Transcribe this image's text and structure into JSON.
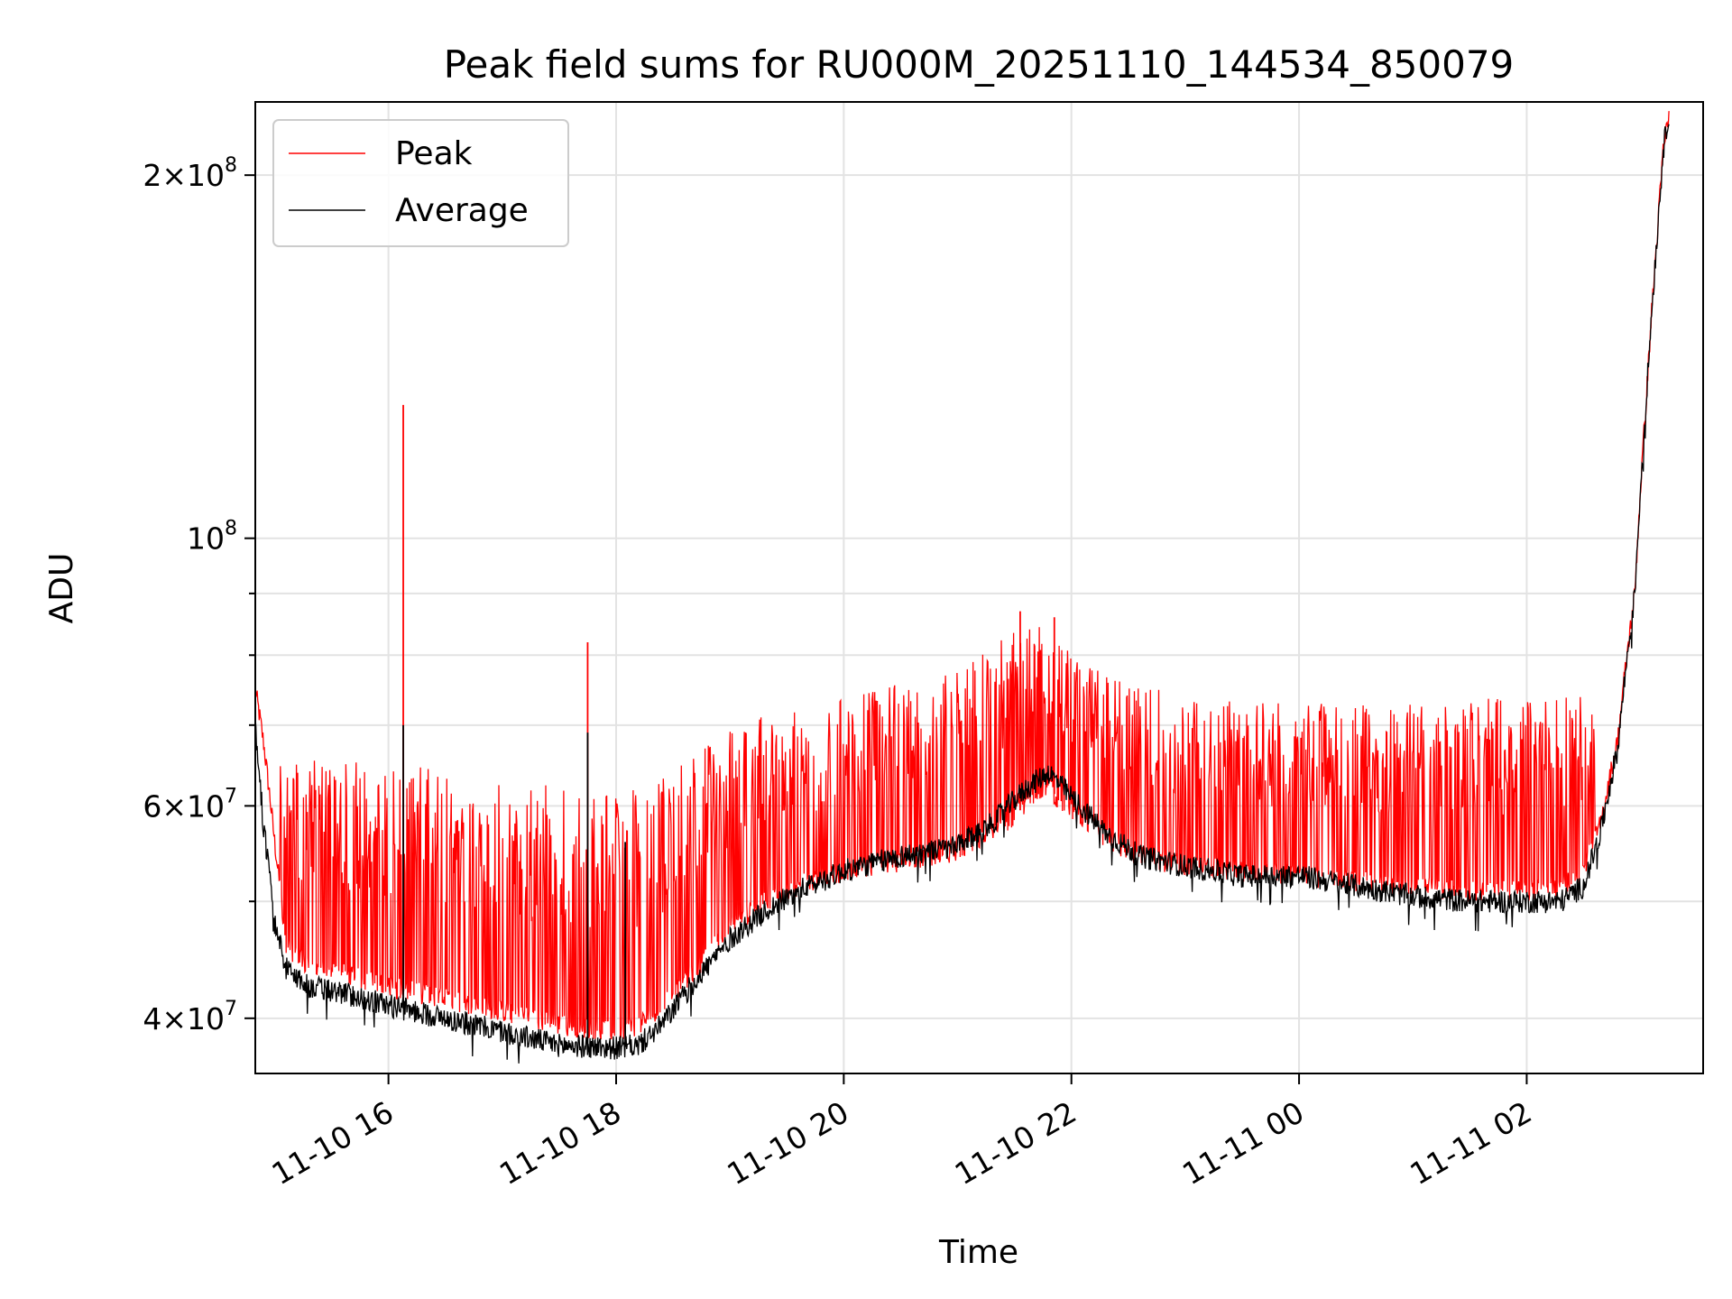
{
  "chart_data": {
    "type": "line",
    "title": "Peak field sums for RU000M_20251110_144534_850079",
    "xlabel": "Time",
    "ylabel": "ADU",
    "yscale": "log",
    "ylim": [
      36000000,
      230000000
    ],
    "xlim_hours": [
      14.83,
      27.55
    ],
    "grid": true,
    "legend_position": "upper-left",
    "x_ticks": [
      {
        "hour": 16,
        "label": "11-10 16"
      },
      {
        "hour": 18,
        "label": "11-10 18"
      },
      {
        "hour": 20,
        "label": "11-10 20"
      },
      {
        "hour": 22,
        "label": "11-10 22"
      },
      {
        "hour": 24,
        "label": "11-11 00"
      },
      {
        "hour": 26,
        "label": "11-11 02"
      }
    ],
    "y_ticks": [
      {
        "value": 40000000,
        "mantissa": "4",
        "exp": "7"
      },
      {
        "value": 60000000,
        "mantissa": "6",
        "exp": "7"
      },
      {
        "value": 100000000,
        "mantissa": "",
        "exp": "8"
      },
      {
        "value": 200000000,
        "mantissa": "2",
        "exp": "8"
      }
    ],
    "y_minor_ticks": [
      50000000,
      70000000,
      80000000,
      90000000
    ],
    "series": [
      {
        "name": "Peak",
        "color": "#ff0000",
        "baseline_hours": [
          14.83,
          14.9,
          15.0,
          15.1,
          15.3,
          15.6,
          16.0,
          16.5,
          17.0,
          17.5,
          18.0,
          18.2,
          18.4,
          18.7,
          19.0,
          19.3,
          19.6,
          20.0,
          20.5,
          21.0,
          21.3,
          21.6,
          21.8,
          22.0,
          22.3,
          22.6,
          23.0,
          23.5,
          24.0,
          24.5,
          25.0,
          25.5,
          26.0,
          26.3,
          26.5,
          26.65,
          26.8,
          26.95,
          27.05,
          27.15,
          27.2,
          27.25
        ],
        "baseline_values": [
          75000000,
          68000000,
          56000000,
          46000000,
          44000000,
          43500000,
          42500000,
          41500000,
          40500000,
          39500000,
          39000000,
          39500000,
          41000000,
          44000000,
          47500000,
          50000000,
          51500000,
          53000000,
          54000000,
          55000000,
          57000000,
          60000000,
          62000000,
          59500000,
          56500000,
          54500000,
          53500000,
          53000000,
          52500000,
          52000000,
          51500000,
          51000000,
          51000000,
          51500000,
          53000000,
          58000000,
          68000000,
          90000000,
          130000000,
          180000000,
          210000000,
          225000000
        ],
        "spike_envelope_hours": [
          15.0,
          16.0,
          17.0,
          18.0,
          18.5,
          19.0,
          19.5,
          20.0,
          21.0,
          21.5,
          21.8,
          22.0,
          22.5,
          23.0,
          24.0,
          25.0,
          26.0,
          26.6
        ],
        "spike_envelope_values": [
          66000000,
          65000000,
          64000000,
          61000000,
          64000000,
          70000000,
          72000000,
          74000000,
          78000000,
          84000000,
          85000000,
          80000000,
          76000000,
          74000000,
          73000000,
          73000000,
          74000000,
          74000000
        ],
        "notable_spikes": [
          {
            "hour": 16.13,
            "value": 129000000
          },
          {
            "hour": 17.75,
            "value": 82000000
          },
          {
            "hour": 21.55,
            "value": 87000000
          },
          {
            "hour": 21.85,
            "value": 86000000
          }
        ]
      },
      {
        "name": "Average",
        "color": "#000000",
        "hours": [
          14.83,
          14.9,
          15.0,
          15.1,
          15.3,
          15.6,
          16.0,
          16.5,
          17.0,
          17.5,
          18.0,
          18.2,
          18.4,
          18.7,
          19.0,
          19.3,
          19.6,
          20.0,
          20.5,
          21.0,
          21.3,
          21.6,
          21.8,
          22.0,
          22.3,
          22.6,
          23.0,
          23.5,
          24.0,
          24.5,
          25.0,
          25.5,
          26.0,
          26.3,
          26.5,
          26.65,
          26.8,
          26.95,
          27.05,
          27.15,
          27.2,
          27.25
        ],
        "values": [
          70000000,
          58000000,
          48000000,
          44000000,
          42500000,
          42000000,
          41000000,
          40000000,
          39000000,
          38000000,
          37800000,
          38000000,
          39500000,
          43000000,
          46500000,
          49000000,
          51000000,
          53000000,
          54500000,
          55500000,
          58000000,
          62000000,
          64000000,
          61000000,
          57000000,
          54500000,
          53500000,
          52500000,
          52500000,
          51500000,
          50500000,
          50000000,
          50000000,
          50000000,
          51500000,
          57000000,
          67000000,
          90000000,
          130000000,
          180000000,
          210000000,
          225000000
        ],
        "notable_spikes": [
          {
            "hour": 16.13,
            "value": 70000000
          },
          {
            "hour": 17.75,
            "value": 69000000
          },
          {
            "hour": 18.08,
            "value": 56000000
          }
        ]
      }
    ]
  }
}
